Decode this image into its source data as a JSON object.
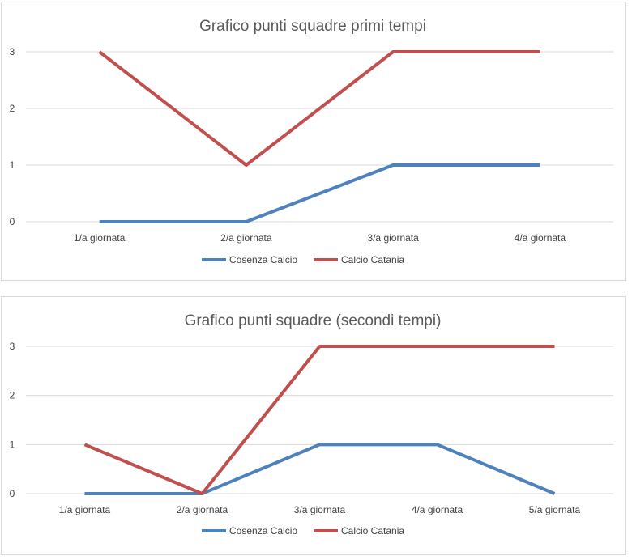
{
  "chart_data": [
    {
      "type": "line",
      "title": "Grafico punti squadre primi tempi",
      "categories": [
        "1/a giornata",
        "2/a giornata",
        "3/a giornata",
        "4/a giornata"
      ],
      "ylim": [
        0,
        3
      ],
      "yticks": [
        "0",
        "1",
        "2",
        "3"
      ],
      "grid": true,
      "legend_position": "bottom",
      "series": [
        {
          "name": "Cosenza Calcio",
          "color": "#4f81bd",
          "values": [
            0,
            0,
            1,
            1
          ]
        },
        {
          "name": "Calcio Catania",
          "color": "#c0504d",
          "values": [
            3,
            1,
            3,
            3
          ]
        }
      ]
    },
    {
      "type": "line",
      "title": "Grafico punti squadre (secondi tempi)",
      "categories": [
        "1/a giornata",
        "2/a giornata",
        "3/a giornata",
        "4/a giornata",
        "5/a giornata"
      ],
      "ylim": [
        0,
        3
      ],
      "yticks": [
        "0",
        "1",
        "2",
        "3"
      ],
      "grid": true,
      "legend_position": "bottom",
      "series": [
        {
          "name": "Cosenza Calcio",
          "color": "#4f81bd",
          "values": [
            0,
            0,
            1,
            1,
            0
          ]
        },
        {
          "name": "Calcio Catania",
          "color": "#c0504d",
          "values": [
            1,
            0,
            3,
            3,
            3
          ]
        }
      ]
    }
  ]
}
